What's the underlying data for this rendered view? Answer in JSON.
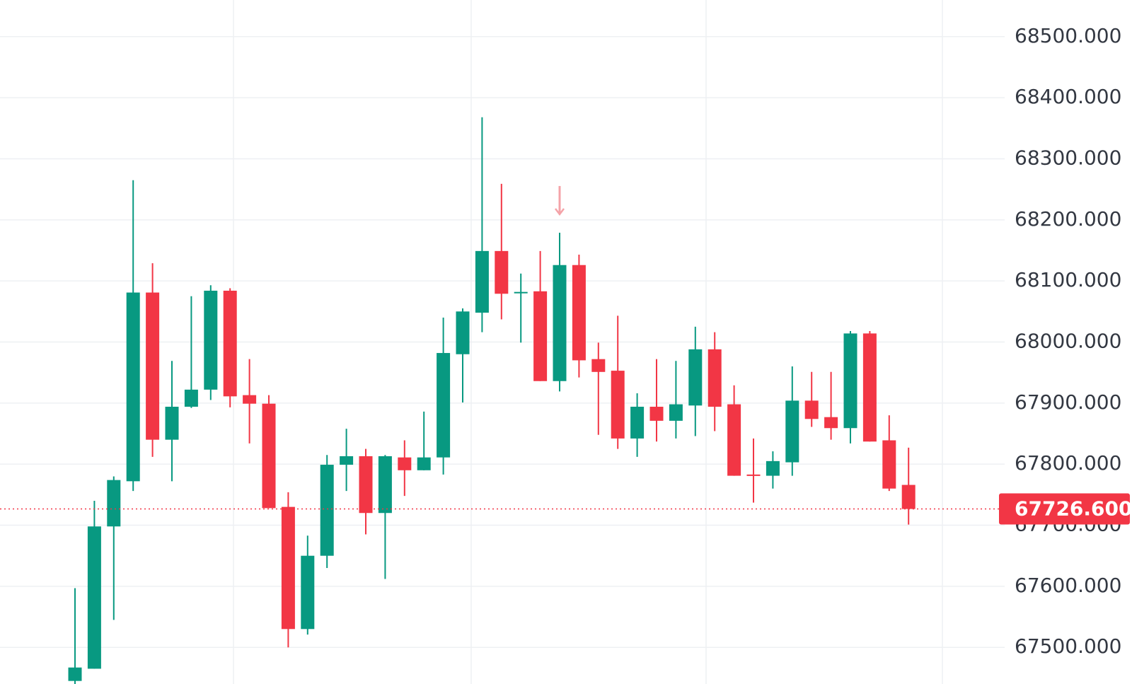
{
  "chart_data": {
    "type": "candlestick",
    "open": [
      67445,
      67465,
      67698,
      67772,
      68081,
      67840,
      67894,
      67922,
      68084,
      67913,
      67899,
      67730,
      67530,
      67650,
      67799,
      67813,
      67720,
      67811,
      67790,
      67811,
      67980,
      68048,
      68149,
      68080,
      68083,
      67936,
      68126,
      67972,
      67953,
      67842,
      67894,
      67871,
      67896,
      67988,
      67898,
      67783,
      67781,
      67803,
      67904,
      67877,
      67859,
      68014,
      67839,
      67766
    ],
    "high": [
      67597,
      67740,
      67780,
      68265,
      68129,
      67969,
      68075,
      68093,
      68088,
      67972,
      67913,
      67754,
      67683,
      67815,
      67858,
      67825,
      67815,
      67839,
      67886,
      68040,
      68055,
      68368,
      68259,
      68112,
      68149,
      68179,
      68143,
      67999,
      68043,
      67916,
      67972,
      67969,
      68025,
      68016,
      67929,
      67842,
      67821,
      67960,
      67951,
      67951,
      68018,
      68018,
      67880,
      67827
    ],
    "low": [
      67440,
      67465,
      67545,
      67756,
      67812,
      67772,
      67892,
      67905,
      67893,
      67834,
      67728,
      67500,
      67521,
      67630,
      67756,
      67685,
      67612,
      67748,
      67790,
      67783,
      67901,
      68016,
      68037,
      67999,
      67936,
      67919,
      67942,
      67848,
      67825,
      67812,
      67837,
      67842,
      67846,
      67854,
      67781,
      67737,
      67760,
      67781,
      67861,
      67840,
      67834,
      67837,
      67756,
      67701
    ],
    "close": [
      67467,
      67698,
      67774,
      68081,
      67840,
      67894,
      67922,
      68084,
      67911,
      67899,
      67728,
      67530,
      67650,
      67799,
      67813,
      67720,
      67813,
      67790,
      67811,
      67982,
      68050,
      68149,
      68079,
      68082,
      67936,
      68126,
      67970,
      67951,
      67842,
      67894,
      67871,
      67898,
      67988,
      67894,
      67781,
      67781,
      67805,
      67904,
      67874,
      67859,
      68014,
      67837,
      67760,
      67726.6
    ],
    "up_color": "#089981",
    "down_color": "#f23645",
    "ylim": [
      67440,
      68560
    ],
    "yticks": [
      {
        "value": 67500,
        "label": "67500.000"
      },
      {
        "value": 67600,
        "label": "67600.000"
      },
      {
        "value": 67700,
        "label": "67700.000"
      },
      {
        "value": 67800,
        "label": "67800.000"
      },
      {
        "value": 67900,
        "label": "67900.000"
      },
      {
        "value": 68000,
        "label": "68000.000"
      },
      {
        "value": 68100,
        "label": "68100.000"
      },
      {
        "value": 68200,
        "label": "68200.000"
      },
      {
        "value": 68300,
        "label": "68300.000"
      },
      {
        "value": 68400,
        "label": "68400.000"
      },
      {
        "value": 68500,
        "label": "68500.000"
      }
    ],
    "grid": true,
    "last_price": {
      "value": 67726.6,
      "label": "67726.600"
    }
  }
}
